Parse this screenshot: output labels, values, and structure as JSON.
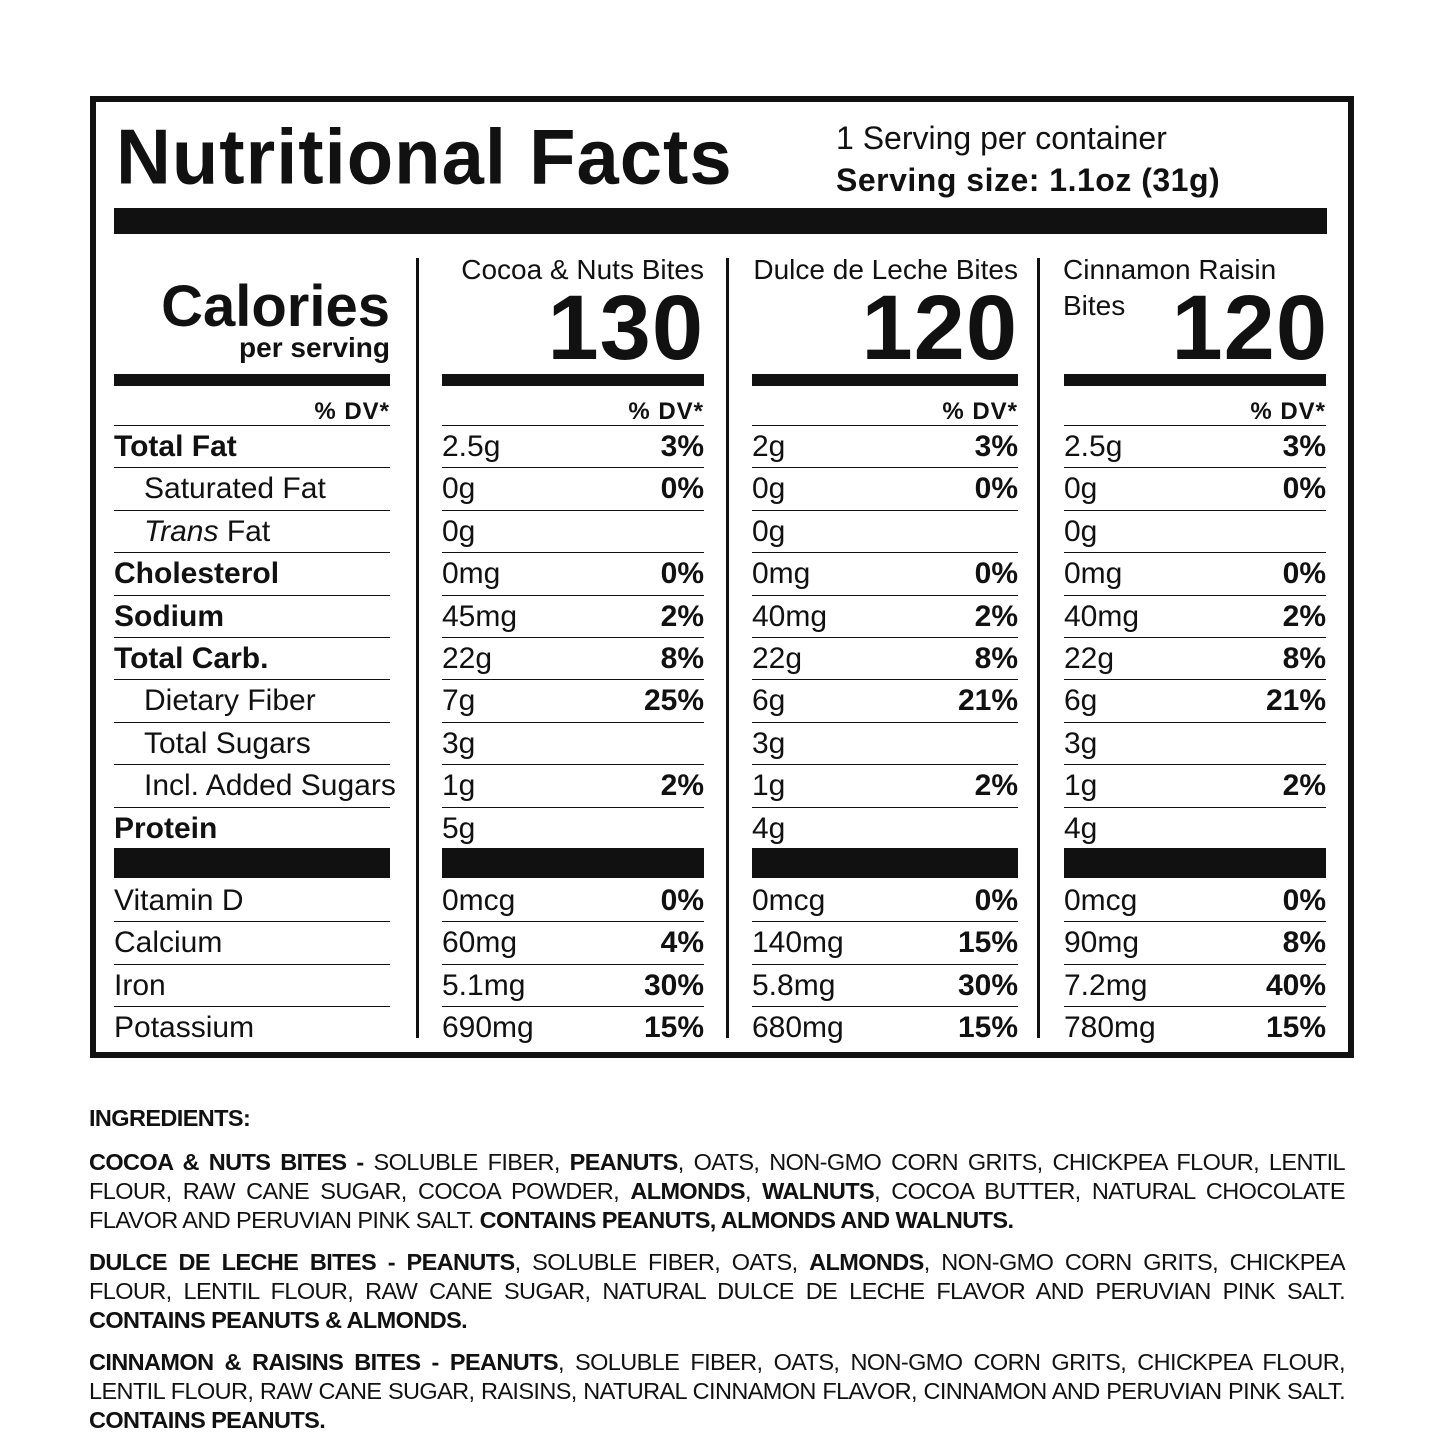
{
  "header": {
    "title": "Nutritional Facts",
    "servings_per_container": "1 Serving per container",
    "serving_size": "Serving size: 1.1oz (31g)"
  },
  "calories": {
    "label": "Calories",
    "sub": "per serving"
  },
  "dv_label": "% DV*",
  "nutrients": [
    {
      "label": "Total Fat",
      "style": "bold"
    },
    {
      "label": "Saturated Fat",
      "style": "indent"
    },
    {
      "label": "Fat",
      "prefix_italic": "Trans",
      "style": "indent"
    },
    {
      "label": "Cholesterol",
      "style": "bold"
    },
    {
      "label": "Sodium",
      "style": "bold"
    },
    {
      "label": "Total Carb.",
      "style": "bold"
    },
    {
      "label": "Dietary Fiber",
      "style": "indent"
    },
    {
      "label": "Total Sugars",
      "style": "indent"
    },
    {
      "label": "Incl. Added Sugars",
      "style": "indent"
    },
    {
      "label": "Protein",
      "style": "bold"
    }
  ],
  "vitamins": [
    "Vitamin D",
    "Calcium",
    "Iron",
    "Potassium"
  ],
  "products": [
    {
      "name": "Cocoa & Nuts Bites",
      "calories": "130",
      "nutrients": [
        [
          "2.5g",
          "3%"
        ],
        [
          "0g",
          "0%"
        ],
        [
          "0g",
          ""
        ],
        [
          "0mg",
          "0%"
        ],
        [
          "45mg",
          "2%"
        ],
        [
          "22g",
          "8%"
        ],
        [
          "7g",
          "25%"
        ],
        [
          "3g",
          ""
        ],
        [
          "1g",
          "2%"
        ],
        [
          "5g",
          ""
        ]
      ],
      "vitamins": [
        [
          "0mcg",
          "0%"
        ],
        [
          "60mg",
          "4%"
        ],
        [
          "5.1mg",
          "30%"
        ],
        [
          "690mg",
          "15%"
        ]
      ]
    },
    {
      "name": "Dulce de Leche Bites",
      "calories": "120",
      "nutrients": [
        [
          "2g",
          "3%"
        ],
        [
          "0g",
          "0%"
        ],
        [
          "0g",
          ""
        ],
        [
          "0mg",
          "0%"
        ],
        [
          "40mg",
          "2%"
        ],
        [
          "22g",
          "8%"
        ],
        [
          "6g",
          "21%"
        ],
        [
          "3g",
          ""
        ],
        [
          "1g",
          "2%"
        ],
        [
          "4g",
          ""
        ]
      ],
      "vitamins": [
        [
          "0mcg",
          "0%"
        ],
        [
          "140mg",
          "15%"
        ],
        [
          "5.8mg",
          "30%"
        ],
        [
          "680mg",
          "15%"
        ]
      ]
    },
    {
      "name_line1": "Cinnamon Raisin",
      "name_line2": "Bites",
      "calories": "120",
      "nutrients": [
        [
          "2.5g",
          "3%"
        ],
        [
          "0g",
          "0%"
        ],
        [
          "0g",
          ""
        ],
        [
          "0mg",
          "0%"
        ],
        [
          "40mg",
          "2%"
        ],
        [
          "22g",
          "8%"
        ],
        [
          "6g",
          "21%"
        ],
        [
          "3g",
          ""
        ],
        [
          "1g",
          "2%"
        ],
        [
          "4g",
          ""
        ]
      ],
      "vitamins": [
        [
          "0mcg",
          "0%"
        ],
        [
          "90mg",
          "8%"
        ],
        [
          "7.2mg",
          "40%"
        ],
        [
          "780mg",
          "15%"
        ]
      ]
    }
  ],
  "ingredients": {
    "heading": "INGREDIENTS:",
    "cocoa": {
      "h": "COCOA & NUTS BITES -",
      "t1": " SOLUBLE FIBER, ",
      "b1": "PEANUTS",
      "t2": ", OATS, NON-GMO CORN GRITS, CHICKPEA FLOUR, LENTIL FLOUR, RAW CANE SUGAR, COCOA POWDER, ",
      "b2": "ALMONDS",
      "t3": ", ",
      "b3": "WALNUTS",
      "t4": ", COCOA BUTTER, NATURAL CHOCOLATE FLAVOR AND PERUVIAN PINK SALT. ",
      "b4": "CONTAINS PEANUTS, ALMONDS AND WALNUTS."
    },
    "dulce": {
      "h": "DULCE DE LECHE BITES -",
      "b1": " PEANUTS",
      "t1": ", SOLUBLE FIBER, OATS, ",
      "b2": "ALMONDS",
      "t2": ", NON-GMO CORN GRITS, CHICKPEA FLOUR, LENTIL FLOUR, RAW CANE SUGAR, NATURAL DULCE DE LECHE FLAVOR AND PERUVIAN PINK SALT. ",
      "b3": "CONTAINS PEANUTS & ALMONDS."
    },
    "cinnamon": {
      "h": "CINNAMON & RAISINS BITES -",
      "b1": " PEANUTS",
      "t1": ", SOLUBLE FIBER, OATS, NON-GMO CORN GRITS, CHICKPEA FLOUR, LENTIL FLOUR, RAW CANE SUGAR, RAISINS, NATURAL CINNAMON FLAVOR, CINNAMON AND PERUVIAN PINK SALT. ",
      "b2": "CONTAINS PEANUTS."
    }
  }
}
